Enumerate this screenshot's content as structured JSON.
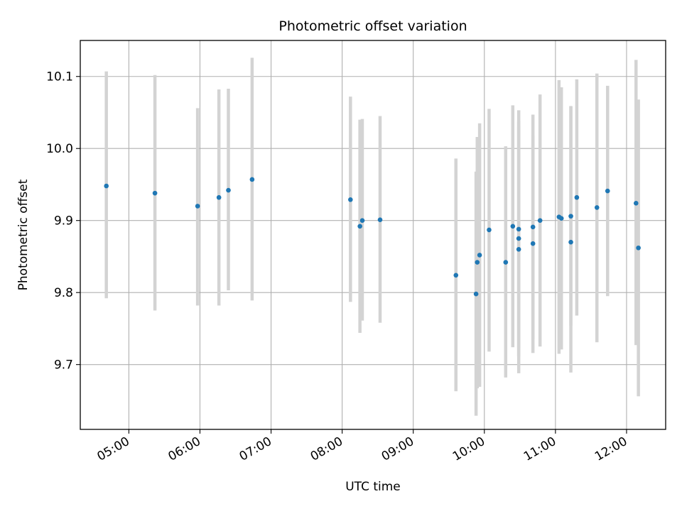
{
  "chart_data": {
    "type": "scatter",
    "title": "Photometric offset variation",
    "xlabel": "UTC time",
    "ylabel": "Photometric offset",
    "x_tick_labels": [
      "05:00",
      "06:00",
      "07:00",
      "08:00",
      "09:00",
      "10:00",
      "11:00",
      "12:00"
    ],
    "y_tick_labels": [
      "9.7",
      "9.8",
      "9.9",
      "10.0",
      "10.1"
    ],
    "xlim": [
      "04:19",
      "12:33"
    ],
    "ylim": [
      9.61,
      10.15
    ],
    "grid": true,
    "error_bars": true,
    "colors": {
      "points": "#1f77b4",
      "error_bars": "#d3d3d3",
      "grid": "#b0b0b0"
    },
    "points": [
      {
        "t": "04:41",
        "y": 9.948,
        "lo": 9.792,
        "hi": 10.107
      },
      {
        "t": "05:22",
        "y": 9.938,
        "lo": 9.775,
        "hi": 10.102
      },
      {
        "t": "05:58",
        "y": 9.92,
        "lo": 9.782,
        "hi": 10.056
      },
      {
        "t": "06:16",
        "y": 9.932,
        "lo": 9.782,
        "hi": 10.082
      },
      {
        "t": "06:24",
        "y": 9.942,
        "lo": 9.803,
        "hi": 10.083
      },
      {
        "t": "06:44",
        "y": 9.957,
        "lo": 9.789,
        "hi": 10.126
      },
      {
        "t": "08:07",
        "y": 9.929,
        "lo": 9.787,
        "hi": 10.072
      },
      {
        "t": "08:15",
        "y": 9.892,
        "lo": 9.744,
        "hi": 10.04
      },
      {
        "t": "08:17",
        "y": 9.9,
        "lo": 9.761,
        "hi": 10.041
      },
      {
        "t": "08:32",
        "y": 9.901,
        "lo": 9.758,
        "hi": 10.045
      },
      {
        "t": "09:36",
        "y": 9.824,
        "lo": 9.663,
        "hi": 9.986
      },
      {
        "t": "09:53",
        "y": 9.798,
        "lo": 9.629,
        "hi": 9.968
      },
      {
        "t": "09:54",
        "y": 9.842,
        "lo": 9.667,
        "hi": 10.016
      },
      {
        "t": "09:56",
        "y": 9.852,
        "lo": 9.669,
        "hi": 10.035
      },
      {
        "t": "10:04",
        "y": 9.887,
        "lo": 9.718,
        "hi": 10.055
      },
      {
        "t": "10:18",
        "y": 9.842,
        "lo": 9.682,
        "hi": 10.003
      },
      {
        "t": "10:24",
        "y": 9.892,
        "lo": 9.724,
        "hi": 10.06
      },
      {
        "t": "10:29",
        "y": 9.888,
        "lo": 9.723,
        "hi": 10.053
      },
      {
        "t": "10:29",
        "y": 9.875,
        "lo": 9.711,
        "hi": 10.038
      },
      {
        "t": "10:29",
        "y": 9.86,
        "lo": 9.688,
        "hi": 10.031
      },
      {
        "t": "10:41",
        "y": 9.891,
        "lo": 9.735,
        "hi": 10.047
      },
      {
        "t": "10:41",
        "y": 9.868,
        "lo": 9.716,
        "hi": 10.018
      },
      {
        "t": "10:47",
        "y": 9.9,
        "lo": 9.725,
        "hi": 10.075
      },
      {
        "t": "11:03",
        "y": 9.905,
        "lo": 9.715,
        "hi": 10.095
      },
      {
        "t": "11:05",
        "y": 9.903,
        "lo": 9.721,
        "hi": 10.085
      },
      {
        "t": "11:13",
        "y": 9.87,
        "lo": 9.689,
        "hi": 10.059
      },
      {
        "t": "11:13",
        "y": 9.906,
        "lo": 9.754,
        "hi": 10.058
      },
      {
        "t": "11:18",
        "y": 9.932,
        "lo": 9.768,
        "hi": 10.096
      },
      {
        "t": "11:35",
        "y": 9.918,
        "lo": 9.731,
        "hi": 10.104
      },
      {
        "t": "11:44",
        "y": 9.941,
        "lo": 9.795,
        "hi": 10.087
      },
      {
        "t": "12:08",
        "y": 9.924,
        "lo": 9.727,
        "hi": 10.123
      },
      {
        "t": "12:10",
        "y": 9.862,
        "lo": 9.656,
        "hi": 10.068
      }
    ]
  }
}
